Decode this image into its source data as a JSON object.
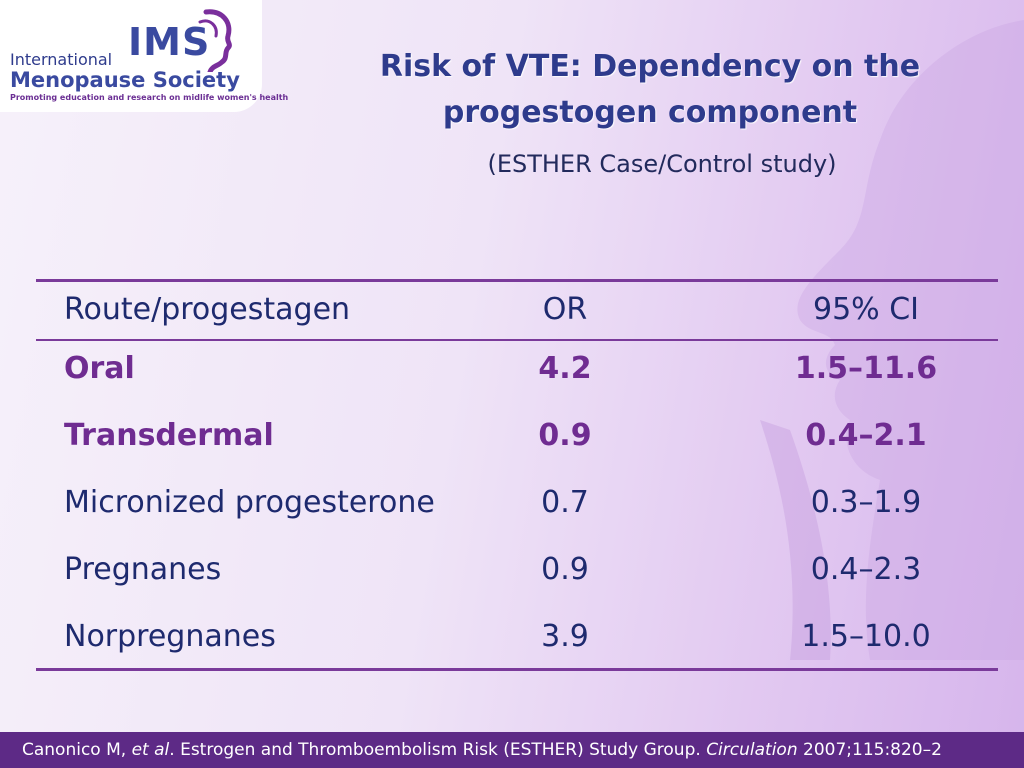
{
  "logo": {
    "line1": "International",
    "line2": "Menopause Society",
    "tagline": "Promoting education and research on midlife women's health",
    "mark": "IMS",
    "mark_icon": "woman-profile-icon"
  },
  "title": {
    "line1": "Risk of VTE: Dependency on the",
    "line2": "progestogen component"
  },
  "subtitle": "(ESTHER Case/Control study)",
  "colors": {
    "title": "#2e3b8c",
    "highlight": "#6f2c91",
    "text": "#1e2a6e",
    "rule": "#7a3a9a",
    "footer_bg": "#5d2a86"
  },
  "table": {
    "headers": [
      "Route/progestagen",
      "OR",
      "95% CI"
    ],
    "rows": [
      {
        "label": "Oral",
        "or": "4.2",
        "ci": "1.5–11.6",
        "highlight": true
      },
      {
        "label": "Transdermal",
        "or": "0.9",
        "ci": "0.4–2.1",
        "highlight": true
      },
      {
        "label": "Micronized progesterone",
        "or": "0.7",
        "ci": "0.3–1.9",
        "highlight": false
      },
      {
        "label": "Pregnanes",
        "or": "0.9",
        "ci": "0.4–2.3",
        "highlight": false
      },
      {
        "label": "Norpregnanes",
        "or": "3.9",
        "ci": "1.5–10.0",
        "highlight": false
      }
    ]
  },
  "footer": {
    "authors": "Canonico M, ",
    "etal": "et al",
    "middle": ". Estrogen and Thromboembolism Risk (ESTHER) Study Group. ",
    "journal": "Circulation",
    "citation": " 2007;115:820–2"
  }
}
